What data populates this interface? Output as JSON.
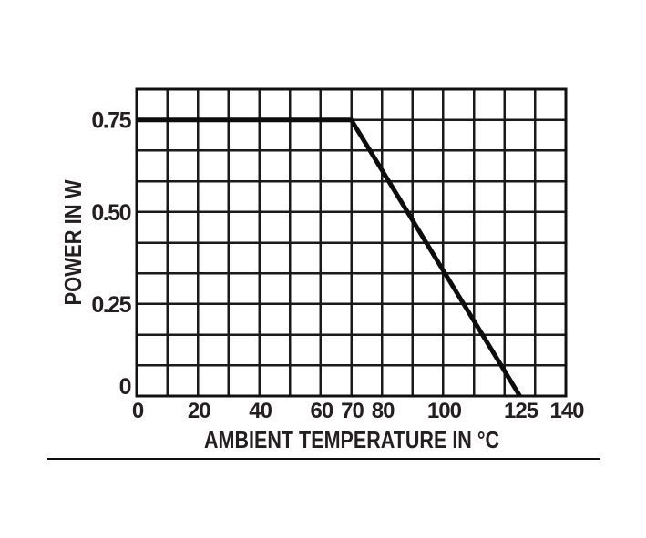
{
  "page": {
    "background": "#ffffff"
  },
  "chart_data": {
    "type": "line",
    "title": "",
    "xlabel": "AMBIENT TEMPERATURE IN °C",
    "ylabel": "POWER IN W",
    "xlim": [
      0,
      140
    ],
    "ylim": [
      0,
      0.8333
    ],
    "x_grid_step": 10,
    "y_grid_rows": 10,
    "grid": true,
    "legend": "none",
    "x_ticks": [
      {
        "value": 0,
        "label": "0"
      },
      {
        "value": 20,
        "label": "20"
      },
      {
        "value": 40,
        "label": "40"
      },
      {
        "value": 60,
        "label": "60"
      },
      {
        "value": 70,
        "label": "70"
      },
      {
        "value": 80,
        "label": "80"
      },
      {
        "value": 100,
        "label": "100"
      },
      {
        "value": 125,
        "label": "125"
      },
      {
        "value": 140,
        "label": "140"
      }
    ],
    "y_ticks": [
      {
        "value": 0,
        "label": "0"
      },
      {
        "value": 0.25,
        "label": "0.25"
      },
      {
        "value": 0.5,
        "label": "0.50"
      },
      {
        "value": 0.75,
        "label": "0.75"
      }
    ],
    "series": [
      {
        "name": "power-derating-curve",
        "points": [
          [
            0,
            0.75
          ],
          [
            70,
            0.75
          ],
          [
            125,
            0
          ]
        ]
      }
    ],
    "colors": {
      "grid": "#1a1a1a",
      "border": "#111111",
      "curve": "#0d0d0d",
      "text": "#231f20",
      "separator": "#111111"
    }
  }
}
